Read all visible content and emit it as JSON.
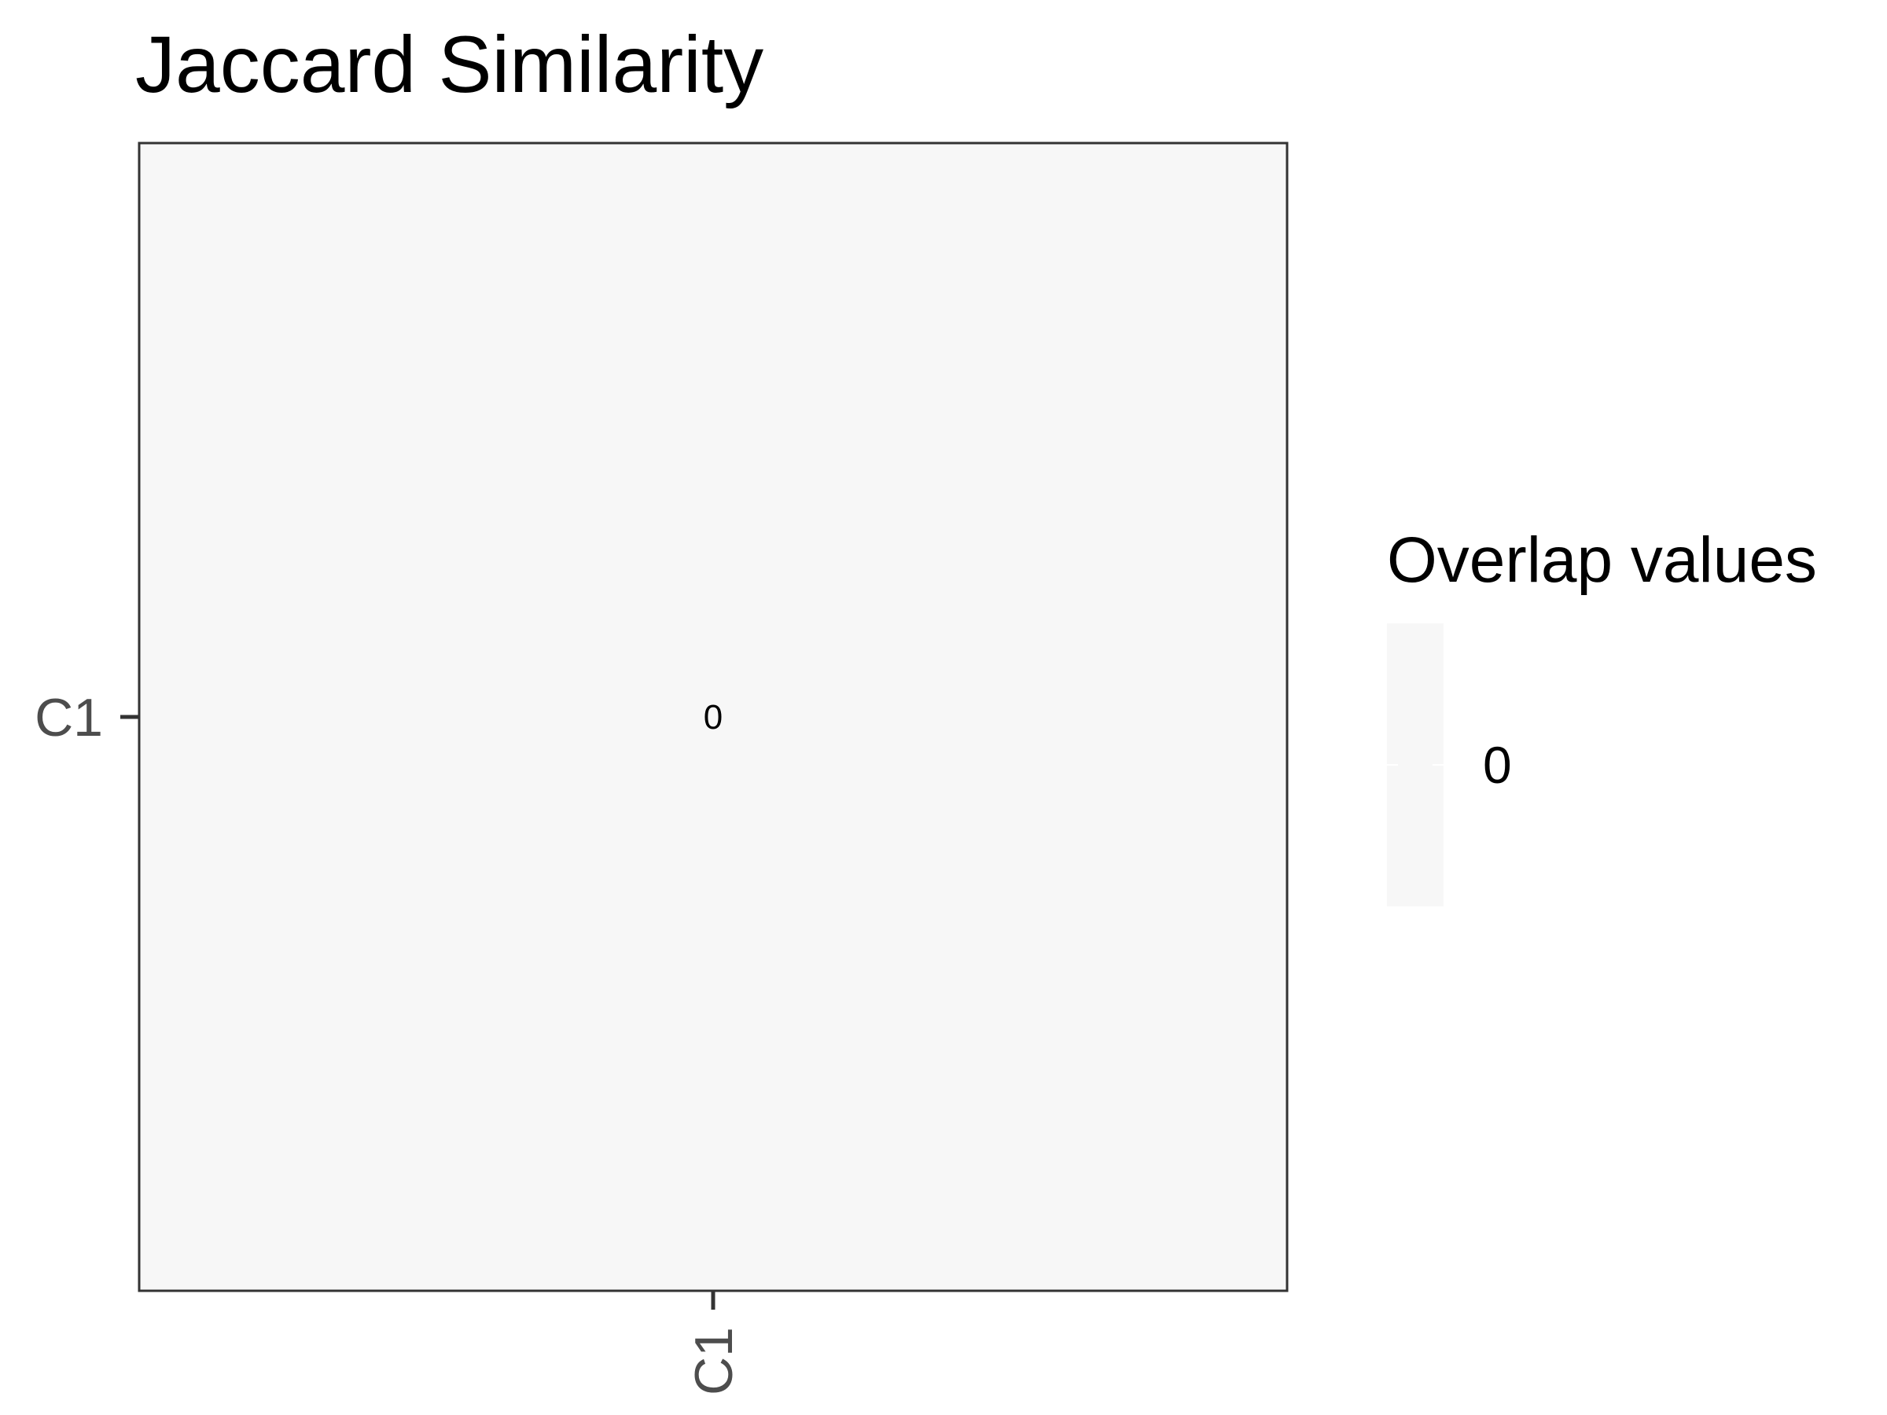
{
  "chart_data": {
    "type": "heatmap",
    "title": "Jaccard Similarity",
    "x_categories": [
      "C1"
    ],
    "y_categories": [
      "C1"
    ],
    "cells": [
      {
        "x": "C1",
        "y": "C1",
        "value": 0,
        "label": "0"
      }
    ],
    "legend": {
      "title": "Overlap values",
      "placement": "right",
      "breaks": [
        0
      ],
      "break_labels": [
        "0"
      ]
    },
    "colors": {
      "cell_fill": "#f7f7f7",
      "panel_border": "#333333",
      "tick_text": "#4d4d4d",
      "tick_mark": "#333333"
    },
    "grid": false
  }
}
